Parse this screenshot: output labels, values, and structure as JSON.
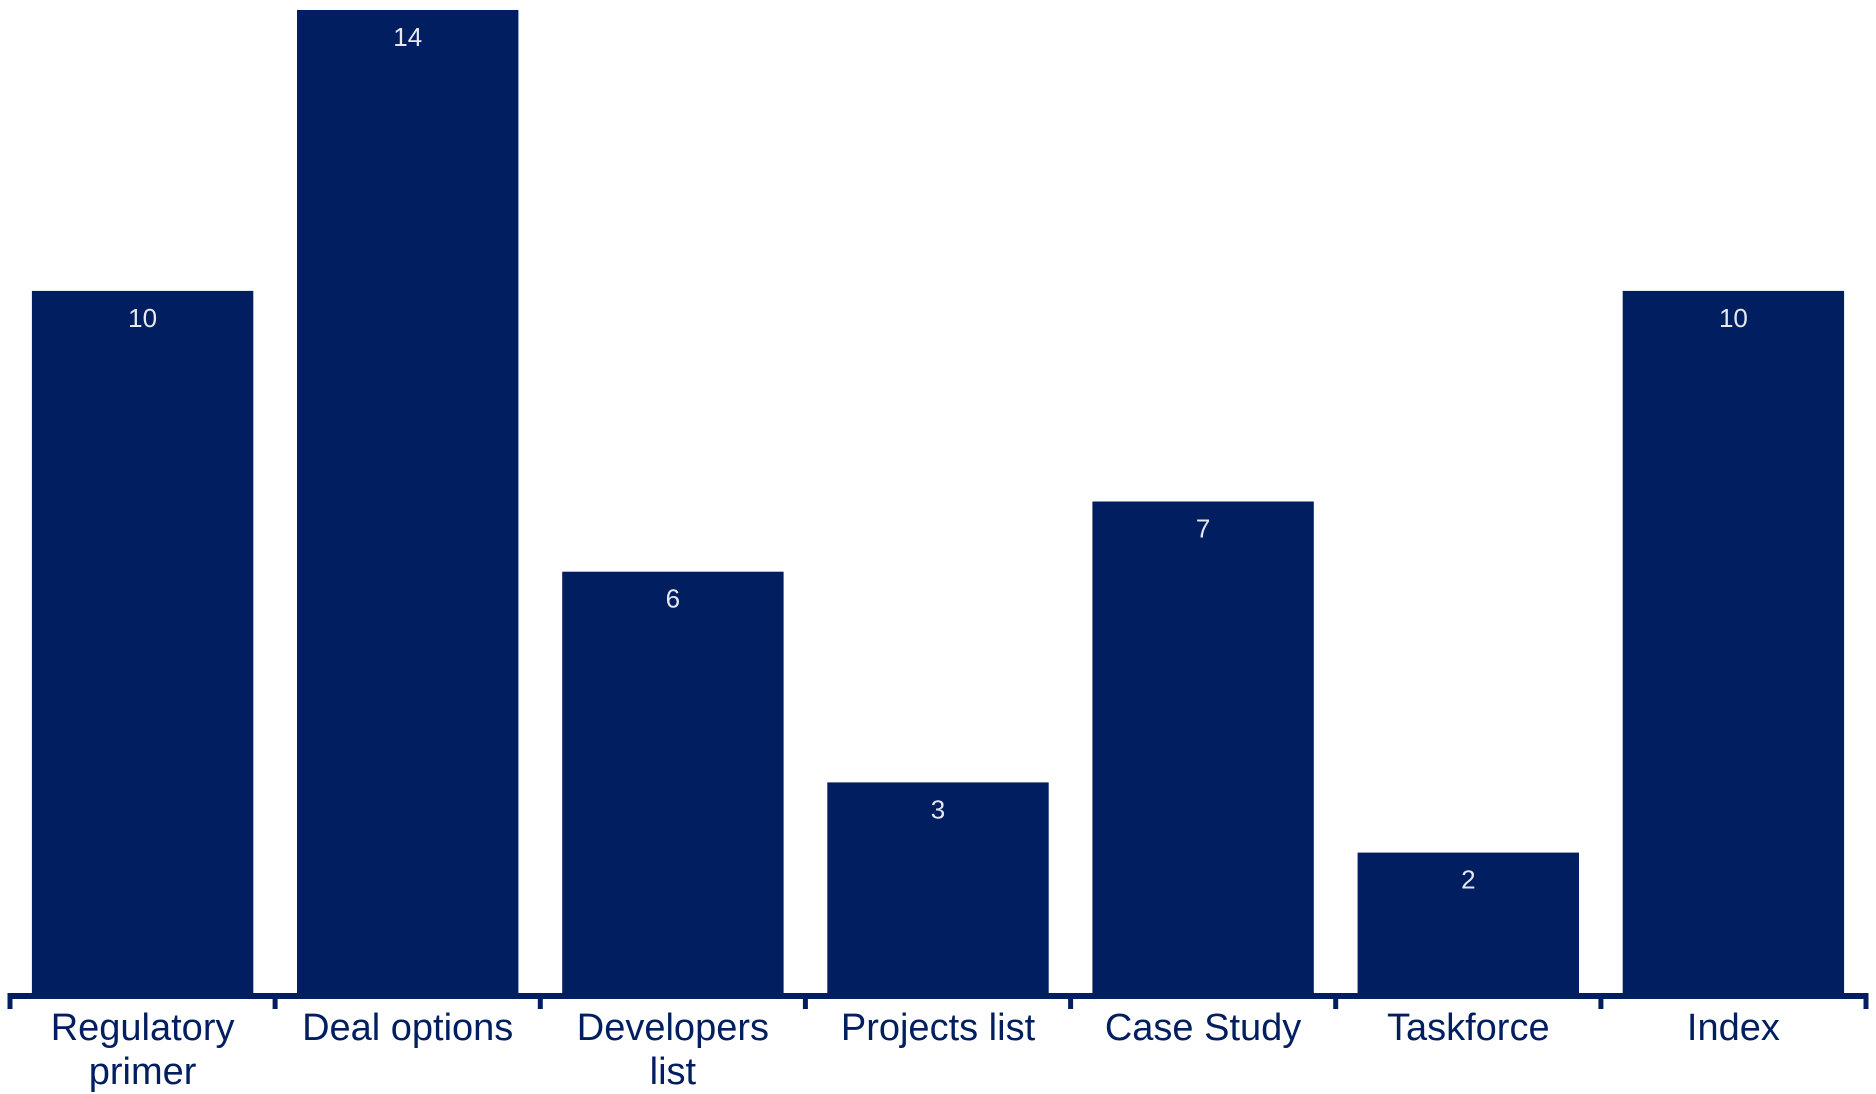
{
  "chart_data": {
    "type": "bar",
    "categories": [
      "Regulatory primer",
      "Deal options",
      "Developers list",
      "Projects list",
      "Case Study",
      "Taskforce",
      "Index"
    ],
    "category_lines": [
      [
        "Regulatory",
        "primer"
      ],
      [
        "Deal options"
      ],
      [
        "Developers",
        "list"
      ],
      [
        "Projects list"
      ],
      [
        "Case Study"
      ],
      [
        "Taskforce"
      ],
      [
        "Index"
      ]
    ],
    "values": [
      10,
      14,
      6,
      3,
      7,
      2,
      10
    ],
    "title": "",
    "xlabel": "",
    "ylabel": "",
    "ylim": [
      0,
      14
    ],
    "grid": false,
    "legend": "none",
    "data_labels": "inside-top",
    "bar_color": "#001e60",
    "axis_color": "#001e60",
    "label_color": "#001e60",
    "value_label_color": "#e6e8f0"
  }
}
